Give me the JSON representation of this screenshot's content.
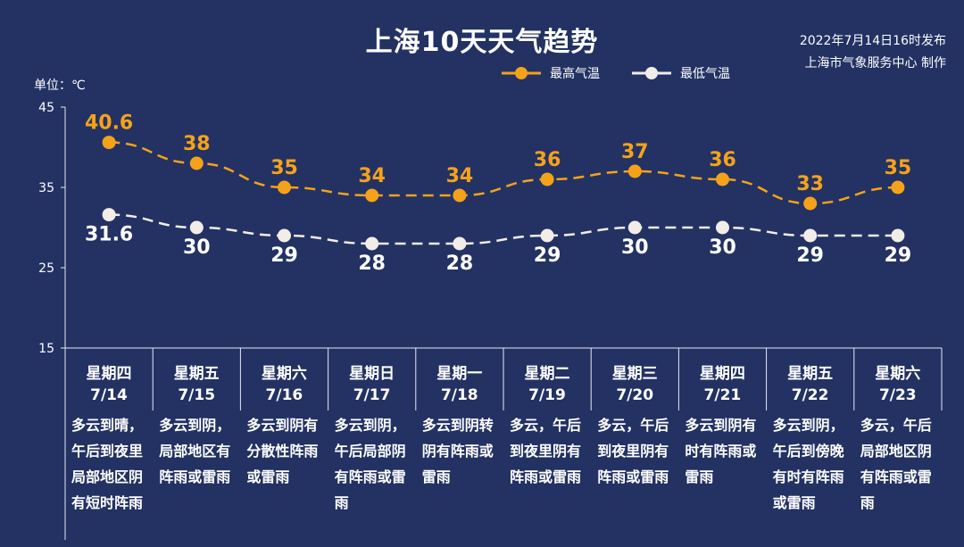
{
  "title": "上海10天天气趋势",
  "publish": {
    "date_line": "2022年7月14日16时发布",
    "org_line": "上海市气象服务中心 制作"
  },
  "colors": {
    "background": "#233263",
    "high": "#f5a21b",
    "low": "#f2ede8",
    "axis": "#e6e9f2"
  },
  "chart_data": {
    "type": "line",
    "unit_label": "单位：℃",
    "ylim": [
      15,
      45
    ],
    "yticks": [
      15,
      25,
      35,
      45
    ],
    "categories": [
      "星期四 7/14",
      "星期五 7/15",
      "星期六 7/16",
      "星期日 7/17",
      "星期一 7/18",
      "星期二 7/19",
      "星期三 7/20",
      "星期四 7/21",
      "星期五 7/22",
      "星期六 7/23"
    ],
    "series": [
      {
        "name": "最高气温",
        "values": [
          40.6,
          38,
          35,
          34,
          34,
          36,
          37,
          36,
          33,
          35
        ],
        "labels": [
          "40.6",
          "38",
          "35",
          "34",
          "34",
          "36",
          "37",
          "36",
          "33",
          "35"
        ],
        "color": "#f5a21b"
      },
      {
        "name": "最低气温",
        "values": [
          31.6,
          30,
          29,
          28,
          28,
          29,
          30,
          30,
          29,
          29
        ],
        "labels": [
          "31.6",
          "30",
          "29",
          "28",
          "28",
          "29",
          "30",
          "30",
          "29",
          "29"
        ],
        "color": "#f2ede8"
      }
    ],
    "legend_position": "top-right",
    "grid": false
  },
  "days": [
    {
      "weekday": "星期四",
      "date": "7/14",
      "desc": "多云到晴，午后到夜里局部地区阴有短时阵雨"
    },
    {
      "weekday": "星期五",
      "date": "7/15",
      "desc": "多云到阴，局部地区有阵雨或雷雨"
    },
    {
      "weekday": "星期六",
      "date": "7/16",
      "desc": "多云到阴有分散性阵雨或雷雨"
    },
    {
      "weekday": "星期日",
      "date": "7/17",
      "desc": "多云到阴，午后局部阴有阵雨或雷雨"
    },
    {
      "weekday": "星期一",
      "date": "7/18",
      "desc": "多云到阴转阴有阵雨或雷雨"
    },
    {
      "weekday": "星期二",
      "date": "7/19",
      "desc": "多云，午后到夜里阴有阵雨或雷雨"
    },
    {
      "weekday": "星期三",
      "date": "7/20",
      "desc": "多云，午后到夜里阴有阵雨或雷雨"
    },
    {
      "weekday": "星期四",
      "date": "7/21",
      "desc": "多云到阴有时有阵雨或雷雨"
    },
    {
      "weekday": "星期五",
      "date": "7/22",
      "desc": "多云到阴，午后到傍晚有时有阵雨或雷雨"
    },
    {
      "weekday": "星期六",
      "date": "7/23",
      "desc": "多云，午后局部地区阴有阵雨或雷雨"
    }
  ]
}
